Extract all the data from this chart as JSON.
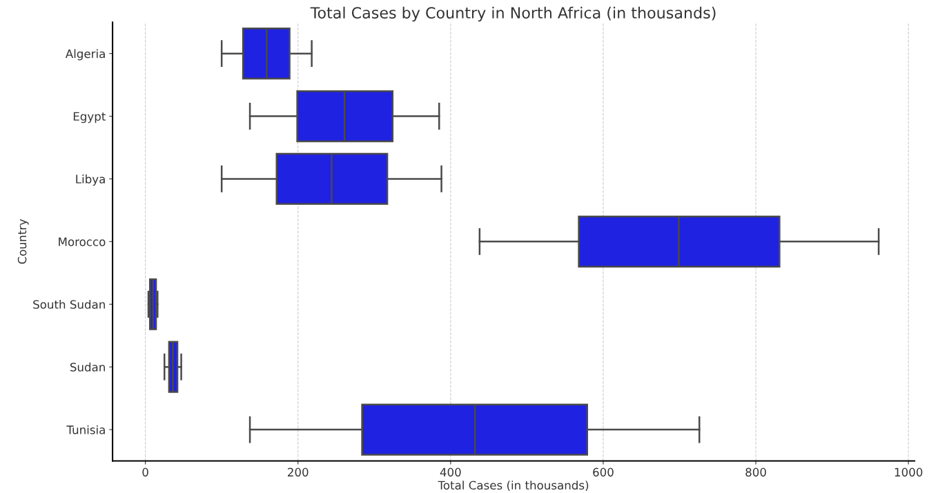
{
  "chart_data": {
    "type": "box",
    "orientation": "horizontal",
    "title": "Total Cases by Country in North Africa (in thousands)",
    "xlabel": "Total Cases (in thousands)",
    "ylabel": "Country",
    "categories": [
      "Algeria",
      "Egypt",
      "Libya",
      "Morocco",
      "South Sudan",
      "Sudan",
      "Tunisia"
    ],
    "color": "#1f22e0",
    "boxes": [
      {
        "low": 100,
        "q1": 128,
        "median": 159,
        "q3": 189,
        "high": 218
      },
      {
        "low": 137,
        "q1": 199,
        "median": 261,
        "q3": 324,
        "high": 385
      },
      {
        "low": 100,
        "q1": 172,
        "median": 244,
        "q3": 317,
        "high": 388
      },
      {
        "low": 438,
        "q1": 568,
        "median": 699,
        "q3": 831,
        "high": 961
      },
      {
        "low": 4,
        "q1": 6,
        "median": 10,
        "q3": 14,
        "high": 16
      },
      {
        "low": 25,
        "q1": 31,
        "median": 36,
        "q3": 42,
        "high": 47
      },
      {
        "low": 137,
        "q1": 284,
        "median": 432,
        "q3": 579,
        "high": 726
      }
    ],
    "xlim": [
      -43,
      1008
    ],
    "xticks": [
      0,
      200,
      400,
      600,
      800,
      1000
    ],
    "grid": "x"
  }
}
